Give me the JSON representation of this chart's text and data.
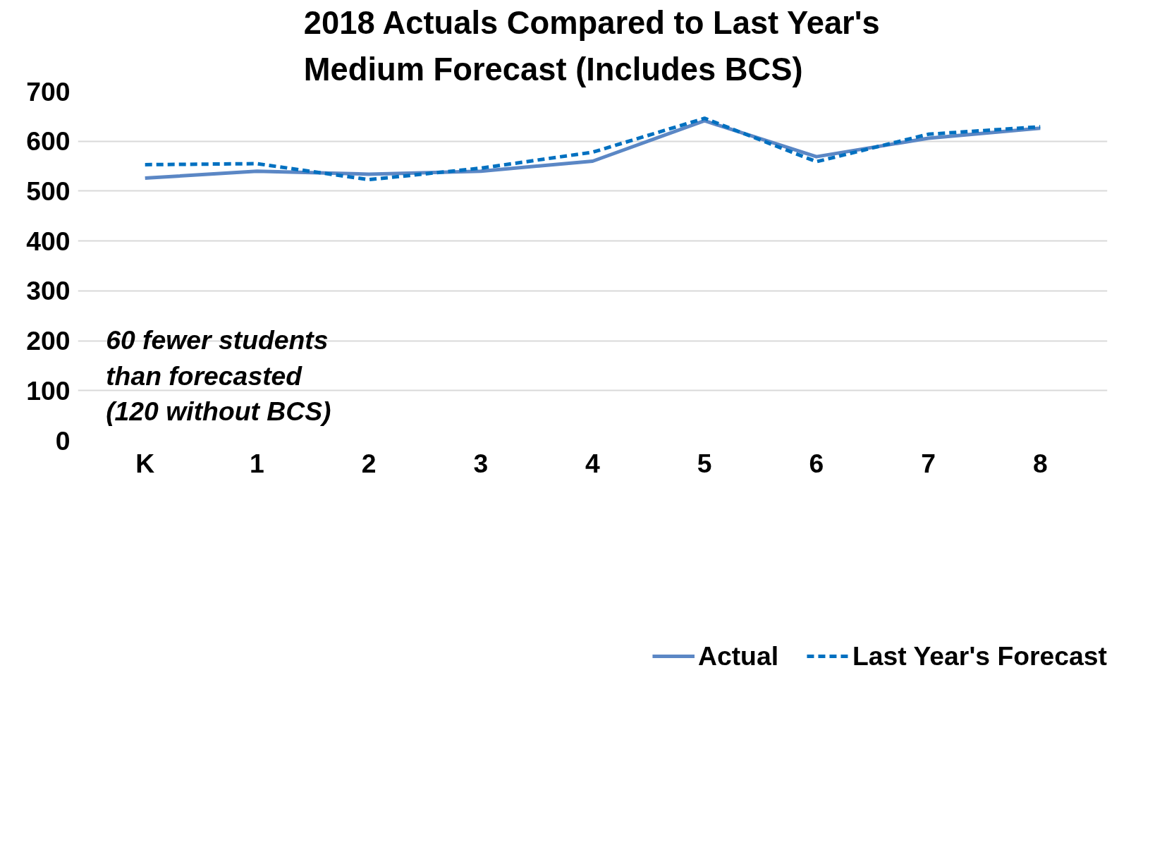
{
  "chart_data": {
    "type": "line",
    "title": "2018 Actuals Compared to Last Year's Medium Forecast (Includes BCS)",
    "categories": [
      "K",
      "1",
      "2",
      "3",
      "4",
      "5",
      "6",
      "7",
      "8"
    ],
    "series": [
      {
        "name": "Actual",
        "color": "#5b87c5",
        "line_style": "solid",
        "values": [
          526,
          540,
          534,
          540,
          560,
          641,
          569,
          606,
          626
        ]
      },
      {
        "name": "Last Year's Forecast",
        "color": "#0070c0",
        "line_style": "dashed",
        "values": [
          553,
          555,
          523,
          546,
          578,
          646,
          559,
          614,
          629
        ]
      }
    ],
    "ylim": [
      0,
      700
    ],
    "yticks": [
      0,
      100,
      200,
      300,
      400,
      500,
      600,
      700
    ],
    "grid": "y",
    "legend": "bottom",
    "marker": "none",
    "annotations": [
      "60 fewer students than forecasted (120 without BCS)"
    ]
  }
}
